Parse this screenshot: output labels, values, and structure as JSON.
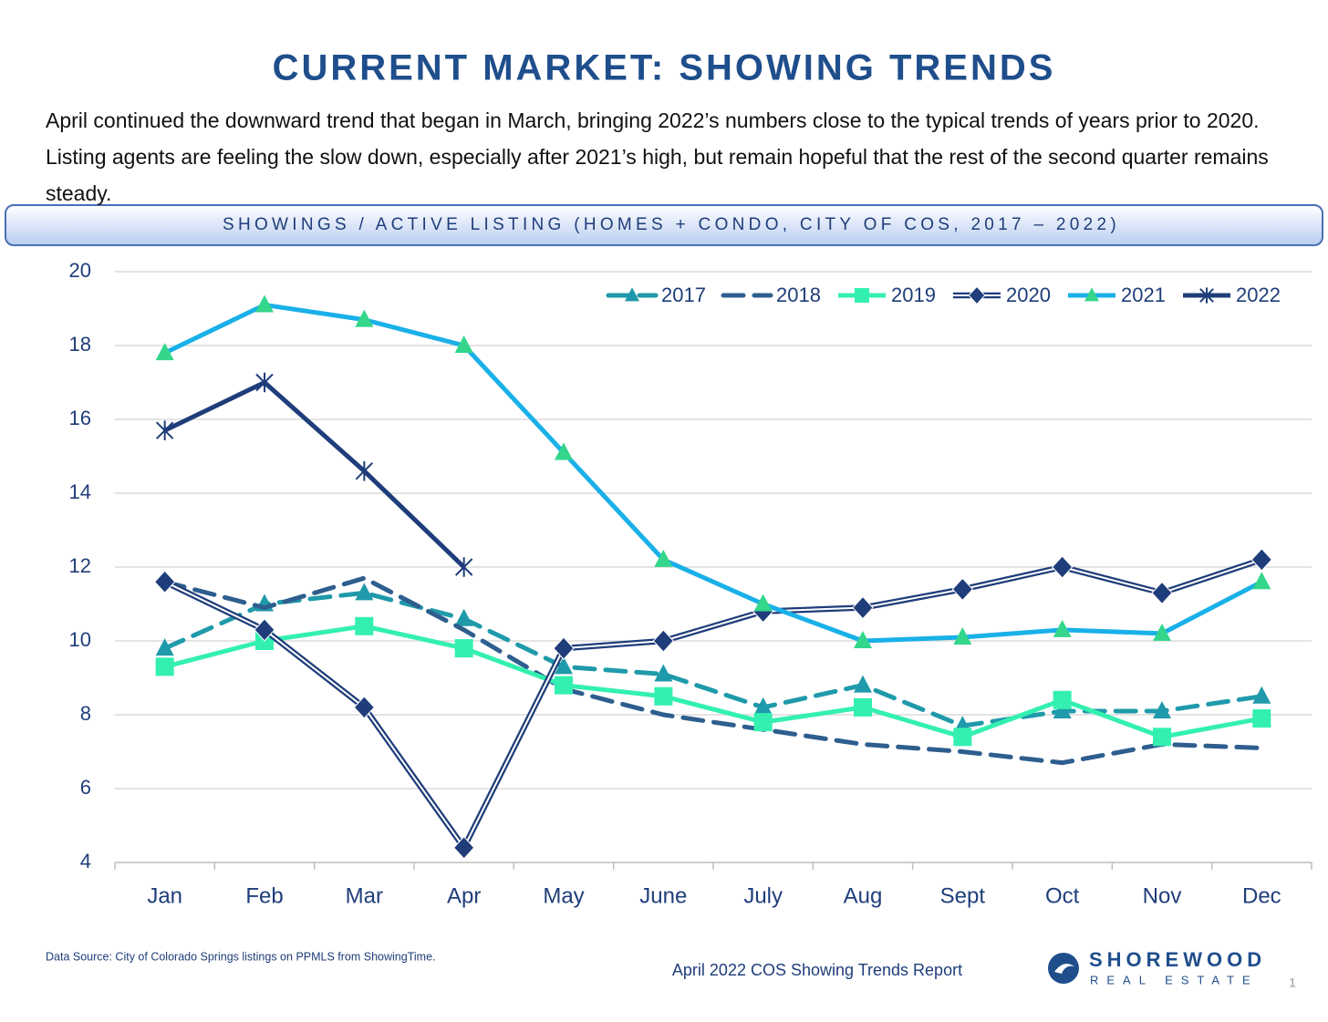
{
  "header": {
    "title": "CURRENT MARKET: SHOWING TRENDS"
  },
  "intro": "April continued the downward trend that began in March, bringing 2022’s numbers close to the typical trends of years prior to 2020. Listing agents are feeling the slow down, especially after 2021’s high, but remain hopeful that the rest of the second quarter remains steady.",
  "chart_data": {
    "type": "line",
    "title": "SHOWINGS / ACTIVE LISTING (HOMES + CONDO, CITY OF COS, 2017 – 2022)",
    "categories": [
      "Jan",
      "Feb",
      "Mar",
      "Apr",
      "May",
      "June",
      "July",
      "Aug",
      "Sept",
      "Oct",
      "Nov",
      "Dec"
    ],
    "ylim": [
      4,
      20
    ],
    "yticks": [
      4,
      6,
      8,
      10,
      12,
      14,
      16,
      18,
      20
    ],
    "grid": true,
    "legend": "top-right",
    "series": [
      {
        "name": "2017",
        "color": "#1f9aaa",
        "line_style": "dashed",
        "marker": "triangle",
        "values": [
          9.8,
          11.0,
          11.3,
          10.6,
          9.3,
          9.1,
          8.2,
          8.8,
          7.7,
          8.1,
          8.1,
          8.5
        ]
      },
      {
        "name": "2018",
        "color": "#2e5e8e",
        "line_style": "dashed",
        "marker": "none",
        "values": [
          11.6,
          10.9,
          11.7,
          10.3,
          8.7,
          8.0,
          7.6,
          7.2,
          7.0,
          6.7,
          7.2,
          7.1
        ]
      },
      {
        "name": "2019",
        "color": "#33f0b0",
        "line_style": "solid",
        "marker": "square",
        "values": [
          9.3,
          10.0,
          10.4,
          9.8,
          8.8,
          8.5,
          7.8,
          8.2,
          7.4,
          8.4,
          7.4,
          7.9
        ]
      },
      {
        "name": "2020",
        "color": "#1f3d7a",
        "line_style": "double",
        "marker": "diamond",
        "values": [
          11.6,
          10.3,
          8.2,
          4.4,
          9.8,
          10.0,
          10.8,
          10.9,
          11.4,
          12.0,
          11.3,
          12.2
        ]
      },
      {
        "name": "2021",
        "color": "#1ab0e8",
        "marker_color": "#33d68a",
        "line_style": "solid",
        "marker": "triangle",
        "values": [
          17.8,
          19.1,
          18.7,
          18.0,
          15.1,
          12.2,
          11.0,
          10.0,
          10.1,
          10.3,
          10.2,
          11.6
        ]
      },
      {
        "name": "2022",
        "color": "#1f3d7a",
        "line_style": "solid",
        "marker": "star",
        "values": [
          15.7,
          17.0,
          14.6,
          12.0,
          null,
          null,
          null,
          null,
          null,
          null,
          null,
          null
        ]
      }
    ]
  },
  "footer": {
    "source": "Data Source: City of Colorado Springs listings on PPMLS from ShowingTime.",
    "report": "April 2022 COS Showing Trends Report",
    "brand": "SHOREWOOD",
    "brand_sub": "REAL ESTATE",
    "page": "1"
  }
}
